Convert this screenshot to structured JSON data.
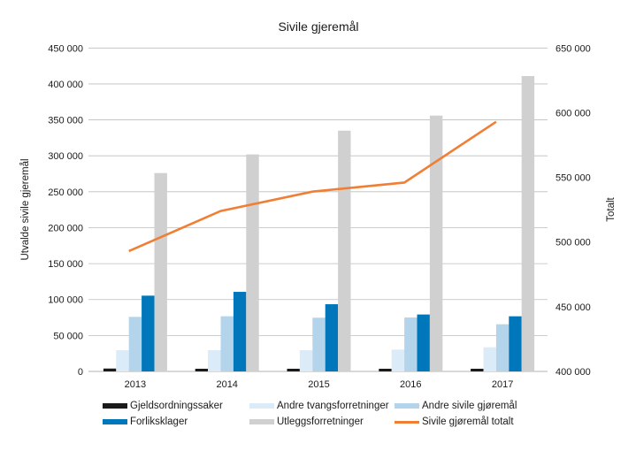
{
  "chart_data": {
    "type": "bar",
    "title": "Sivile gjeremål",
    "xlabel": "",
    "ylabel": "Utvalde sivile gjeremål",
    "y2label": "Totalt",
    "categories": [
      "2013",
      "2014",
      "2015",
      "2016",
      "2017"
    ],
    "ylim": [
      0,
      450000
    ],
    "y2lim": [
      400000,
      650000
    ],
    "yticks": [
      "0",
      "50 000",
      "100 000",
      "150 000",
      "200 000",
      "250 000",
      "300 000",
      "350 000",
      "400 000",
      "450 000"
    ],
    "y2ticks": [
      "400 000",
      "450 000",
      "500 000",
      "550 000",
      "600 000",
      "650 000"
    ],
    "grid": true,
    "legend_position": "bottom",
    "series": [
      {
        "name": "Gjeldsordningssaker",
        "kind": "bar",
        "color": "#1a1a1a",
        "values": [
          4000,
          3700,
          3700,
          3700,
          3700
        ]
      },
      {
        "name": "Andre tvangsforretninger",
        "kind": "bar",
        "color": "#dbebf7",
        "values": [
          29500,
          29500,
          29500,
          30400,
          33600
        ]
      },
      {
        "name": "Andre sivile gjøremål",
        "kind": "bar",
        "color": "#b3d4ea",
        "values": [
          75900,
          76700,
          74700,
          75000,
          65600
        ]
      },
      {
        "name": "Forliksklager",
        "kind": "bar",
        "color": "#0077bb",
        "values": [
          105400,
          110700,
          93500,
          79200,
          76700
        ]
      },
      {
        "name": "Utleggsforretninger",
        "kind": "bar",
        "color": "#d0d0d0",
        "values": [
          276000,
          301900,
          335000,
          356000,
          411000
        ]
      },
      {
        "name": "Sivile gjøremål totalt",
        "kind": "line",
        "axis": "right",
        "color": "#f07f35",
        "values": [
          493000,
          524000,
          539000,
          546000,
          593000
        ]
      }
    ]
  }
}
